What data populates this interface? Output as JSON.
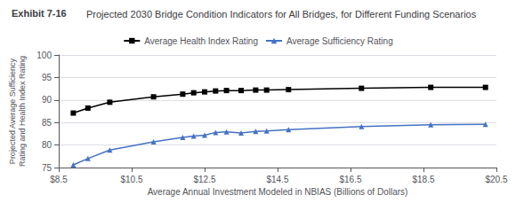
{
  "chart_data": {
    "type": "line",
    "title": "Exhibit 7-16",
    "subtitle": "Projected 2030 Bridge Condition Indicators for All Bridges, for Different Funding Scenarios",
    "x_label": "Average Annual Investment Modeled in NBIAS (Billions of Dollars)",
    "y_label": "Projected Average Sufficiency\nRating and Health Index Rating",
    "x": [
      8.9,
      9.3,
      9.9,
      11.1,
      11.9,
      12.2,
      12.5,
      12.8,
      13.1,
      13.5,
      13.9,
      14.2,
      14.8,
      16.8,
      18.7,
      20.2
    ],
    "series": [
      {
        "name": "Average Health Index Rating",
        "color": "#000000",
        "marker": "square",
        "values": [
          87.1,
          88.2,
          89.5,
          90.7,
          91.3,
          91.6,
          91.8,
          92.0,
          92.1,
          92.1,
          92.2,
          92.2,
          92.3,
          92.6,
          92.8,
          92.8
        ]
      },
      {
        "name": "Average Sufficiency Rating",
        "color": "#4472c4",
        "marker": "triangle",
        "values": [
          75.6,
          77.0,
          78.9,
          80.7,
          81.7,
          82.0,
          82.2,
          82.8,
          82.9,
          82.7,
          83.0,
          83.1,
          83.4,
          84.1,
          84.5,
          84.6
        ]
      }
    ],
    "xlim": [
      8.5,
      20.5
    ],
    "xticks": [
      {
        "value": 8.5,
        "label": "$8.5"
      },
      {
        "value": 10.5,
        "label": "$10.5"
      },
      {
        "value": 12.5,
        "label": "$12.5"
      },
      {
        "value": 14.5,
        "label": "$14.5"
      },
      {
        "value": 16.5,
        "label": "$16.5"
      },
      {
        "value": 18.5,
        "label": "$18.5"
      },
      {
        "value": 20.5,
        "label": "$20.5"
      }
    ],
    "ylim": [
      75,
      100
    ],
    "yticks": [
      75,
      80,
      85,
      90,
      95,
      100
    ],
    "grid": true,
    "legend": "top"
  }
}
